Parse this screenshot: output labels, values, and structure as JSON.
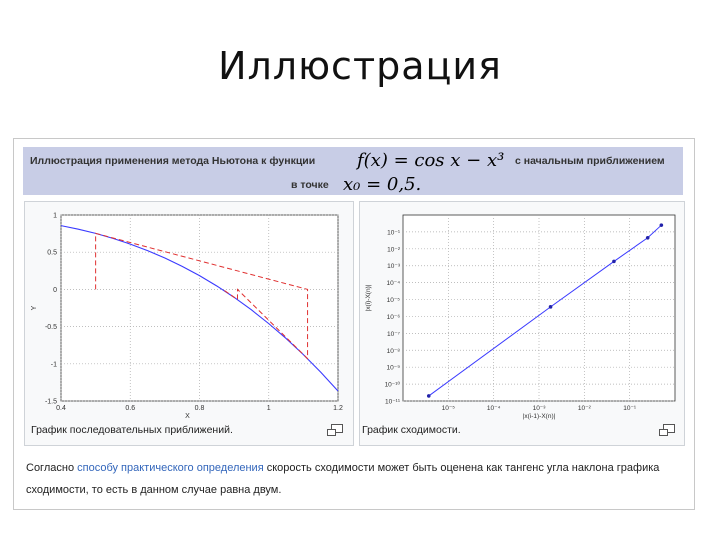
{
  "slide": {
    "title": "Иллюстрация"
  },
  "header": {
    "line1_prefix": "Иллюстрация применения метода Ньютона к функции",
    "formula1": "f(x) = cos x − x³",
    "line1_suffix": "с начальным приближением",
    "line2_prefix": "в точке",
    "formula2": "x₀ = 0,5."
  },
  "captions": {
    "left": "График последовательных приближений.",
    "right": "График сходимости."
  },
  "paragraph": {
    "before": "Согласно ",
    "link": "способу практического определения",
    "after": " скорость сходимости может быть оценена как тангенс угла наклона графика сходимости, то есть в данном случае равна двум."
  },
  "colors": {
    "curve": "#3a3aff",
    "approx": "#e03030",
    "header_bg": "#c8cde6",
    "link": "#3366bb"
  },
  "chart_data": [
    {
      "type": "line",
      "xlabel": "X",
      "ylabel": "Y",
      "xlim": [
        0.4,
        1.2
      ],
      "ylim": [
        -1.5,
        1
      ],
      "x_ticks": [
        0.4,
        0.6,
        0.8,
        1,
        1.2
      ],
      "x_tick_labels": [
        "0.4",
        "0.6",
        "0.8",
        "1",
        "1.2"
      ],
      "y_ticks": [
        1,
        0.5,
        0,
        -0.5,
        -1,
        -1.5
      ],
      "y_tick_labels": [
        "1",
        "0.5",
        "0",
        "-0.5",
        "-1",
        "-1.5"
      ],
      "grid": true,
      "series": [
        {
          "style": "solid",
          "x": [
            0.4,
            0.45,
            0.5,
            0.55,
            0.6,
            0.65,
            0.7,
            0.75,
            0.8,
            0.85,
            0.9,
            0.95,
            1.0,
            1.05,
            1.1,
            1.15,
            1.2
          ],
          "y": [
            0.857,
            0.809,
            0.753,
            0.686,
            0.609,
            0.521,
            0.422,
            0.31,
            0.185,
            0.046,
            -0.107,
            -0.275,
            -0.46,
            -0.659,
            -0.877,
            -1.112,
            -1.366
          ]
        },
        {
          "style": "dashed",
          "x": [
            0.5,
            0.5,
            1.1121,
            1.1121,
            0.9097,
            0.9097,
            0.8672,
            0.8672,
            0.8655
          ],
          "y": [
            0,
            0.753,
            0,
            -0.931,
            0,
            -0.136,
            0,
            -0.005,
            0
          ]
        }
      ]
    },
    {
      "type": "line",
      "xlabel": "|x(i-1)-X(n)|",
      "ylabel": "|x(i)-X(n)|",
      "x_scale": "log",
      "y_scale": "log",
      "xlim": [
        1e-06,
        1
      ],
      "ylim": [
        1e-11,
        1
      ],
      "x_tick_labels": [
        "10⁻⁵",
        "10⁻⁴",
        "10⁻³",
        "10⁻²",
        "10⁻¹"
      ],
      "y_tick_labels": [
        "10⁻¹",
        "10⁻²",
        "10⁻³",
        "10⁻⁴",
        "10⁻⁵",
        "10⁻⁶",
        "10⁻⁷",
        "10⁻⁸",
        "10⁻⁹",
        "10⁻¹⁰",
        "10⁻¹¹"
      ],
      "grid": true,
      "series": [
        {
          "x": [
            3.7e-06,
            0.0018,
            0.045,
            0.25,
            0.5
          ],
          "y": [
            2e-11,
            3.7e-06,
            0.0018,
            0.045,
            0.25
          ]
        }
      ]
    }
  ]
}
